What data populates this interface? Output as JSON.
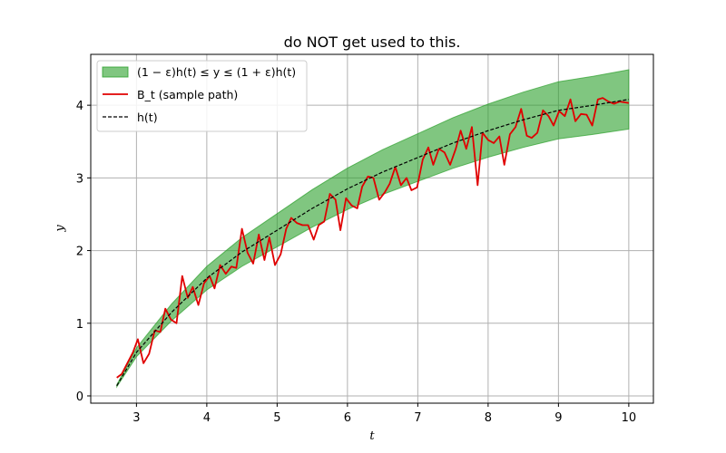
{
  "chart_data": {
    "type": "line",
    "title": "do NOT get used to this.",
    "xlabel": "t",
    "ylabel": "y",
    "xlim": [
      2.35,
      10.35
    ],
    "ylim": [
      -0.1,
      4.7
    ],
    "xticks": [
      3,
      4,
      5,
      6,
      7,
      8,
      9,
      10
    ],
    "yticks": [
      0,
      1,
      2,
      3,
      4
    ],
    "grid": true,
    "legend_position": "top-left",
    "legend": [
      {
        "label": "(1 − ε)h(t) ≤ y ≤ (1 + ε)h(t)",
        "kind": "band",
        "color": "#2ca02c"
      },
      {
        "label": "B_t (sample path)",
        "kind": "line",
        "color": "#e00000"
      },
      {
        "label": "h(t)",
        "kind": "dashed",
        "color": "#000000"
      }
    ],
    "epsilon": 0.1,
    "series": [
      {
        "name": "B_t (sample path)",
        "color": "#e00000",
        "x": [
          2.72,
          2.79,
          2.87,
          2.95,
          3.02,
          3.1,
          3.18,
          3.26,
          3.34,
          3.41,
          3.49,
          3.57,
          3.65,
          3.73,
          3.8,
          3.88,
          3.96,
          4.04,
          4.11,
          4.19,
          4.27,
          4.35,
          4.42,
          4.5,
          4.58,
          4.66,
          4.74,
          4.82,
          4.89,
          4.97,
          5.05,
          5.13,
          5.2,
          5.28,
          5.36,
          5.44,
          5.52,
          5.59,
          5.67,
          5.75,
          5.83,
          5.9,
          5.98,
          6.06,
          6.14,
          6.21,
          6.29,
          6.37,
          6.45,
          6.53,
          6.6,
          6.68,
          6.76,
          6.84,
          6.91,
          6.99,
          7.07,
          7.15,
          7.22,
          7.3,
          7.38,
          7.46,
          7.54,
          7.61,
          7.69,
          7.77,
          7.85,
          7.92,
          8.0,
          8.08,
          8.16,
          8.23,
          8.31,
          8.39,
          8.47,
          8.55,
          8.62,
          8.7,
          8.78,
          8.86,
          8.93,
          9.01,
          9.09,
          9.17,
          9.24,
          9.32,
          9.4,
          9.48,
          9.56,
          9.63,
          9.71,
          9.79,
          9.87,
          10.0
        ],
        "y": [
          0.25,
          0.3,
          0.45,
          0.6,
          0.78,
          0.45,
          0.58,
          0.9,
          0.88,
          1.2,
          1.05,
          1.0,
          1.65,
          1.35,
          1.5,
          1.25,
          1.55,
          1.65,
          1.48,
          1.8,
          1.68,
          1.78,
          1.76,
          2.3,
          1.97,
          1.82,
          2.22,
          1.87,
          2.18,
          1.8,
          1.95,
          2.3,
          2.45,
          2.38,
          2.35,
          2.35,
          2.15,
          2.35,
          2.4,
          2.78,
          2.7,
          2.28,
          2.72,
          2.62,
          2.58,
          2.88,
          3.02,
          3.0,
          2.7,
          2.8,
          2.92,
          3.15,
          2.9,
          3.0,
          2.83,
          2.87,
          3.25,
          3.42,
          3.18,
          3.4,
          3.35,
          3.18,
          3.4,
          3.65,
          3.4,
          3.7,
          2.9,
          3.62,
          3.52,
          3.48,
          3.57,
          3.18,
          3.6,
          3.7,
          3.95,
          3.58,
          3.55,
          3.62,
          3.93,
          3.85,
          3.72,
          3.92,
          3.85,
          4.08,
          3.78,
          3.88,
          3.87,
          3.72,
          4.08,
          4.1,
          4.05,
          4.02,
          4.05,
          4.03
        ]
      },
      {
        "name": "h(t)",
        "color": "#000000",
        "x": [
          2.72,
          3.0,
          3.5,
          4.0,
          4.5,
          5.0,
          5.5,
          6.0,
          6.5,
          7.0,
          7.5,
          8.0,
          8.5,
          9.0,
          9.5,
          10.0
        ],
        "y": [
          0.14,
          0.6,
          1.15,
          1.62,
          1.98,
          2.28,
          2.58,
          2.85,
          3.08,
          3.28,
          3.48,
          3.65,
          3.8,
          3.93,
          4.0,
          4.08
        ]
      }
    ]
  }
}
